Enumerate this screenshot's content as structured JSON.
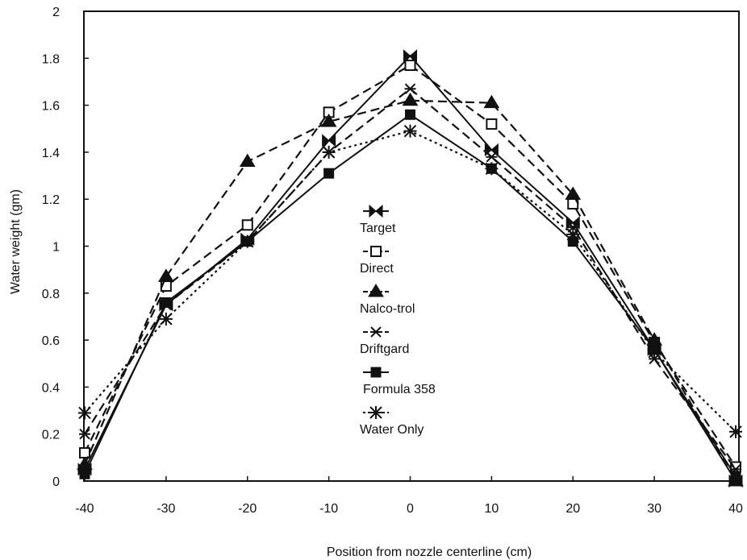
{
  "chart_data": {
    "type": "line",
    "title": "",
    "xlabel": "Position from nozzle centerline (cm)",
    "ylabel": "Water weight (gm)",
    "xlim": [
      -40,
      40
    ],
    "ylim": [
      0,
      2
    ],
    "x_ticks": [
      "-40",
      "-30",
      "-20",
      "-10",
      "0",
      "10",
      "20",
      "30",
      "40"
    ],
    "y_ticks": [
      "0",
      "0.2",
      "0.4",
      "0.6",
      "0.8",
      "1",
      "1.2",
      "1.4",
      "1.6",
      "1.8",
      "2"
    ],
    "x": [
      -40,
      -30,
      -20,
      -10,
      0,
      10,
      20,
      30,
      40
    ],
    "grid": false,
    "legend_position": "center",
    "series": [
      {
        "name": "Target",
        "values": [
          0.05,
          0.75,
          1.03,
          1.45,
          1.81,
          1.41,
          1.1,
          0.56,
          0.0
        ],
        "color": "#111111",
        "dash": "solid",
        "marker": "bowtie"
      },
      {
        "name": "Direct",
        "values": [
          0.12,
          0.83,
          1.09,
          1.57,
          1.77,
          1.52,
          1.18,
          0.59,
          0.06
        ],
        "color": "#111111",
        "dash": "dashed",
        "marker": "square-open"
      },
      {
        "name": "Nalco-trol",
        "values": [
          0.07,
          0.87,
          1.36,
          1.53,
          1.62,
          1.61,
          1.22,
          0.6,
          0.0
        ],
        "color": "#111111",
        "dash": "dashed",
        "marker": "triangle"
      },
      {
        "name": "Driftgard",
        "values": [
          0.2,
          0.75,
          1.02,
          1.4,
          1.67,
          1.38,
          1.08,
          0.52,
          0.05
        ],
        "color": "#111111",
        "dash": "dashed",
        "marker": "x-bar"
      },
      {
        "name": "Formula 358",
        "values": [
          0.03,
          0.76,
          1.02,
          1.31,
          1.56,
          1.33,
          1.02,
          0.56,
          0.02
        ],
        "color": "#111111",
        "dash": "solid",
        "marker": "square"
      },
      {
        "name": "Water Only",
        "values": [
          0.29,
          0.69,
          1.02,
          1.4,
          1.49,
          1.33,
          1.05,
          0.55,
          0.21
        ],
        "color": "#111111",
        "dash": "dotted",
        "marker": "star"
      }
    ]
  }
}
